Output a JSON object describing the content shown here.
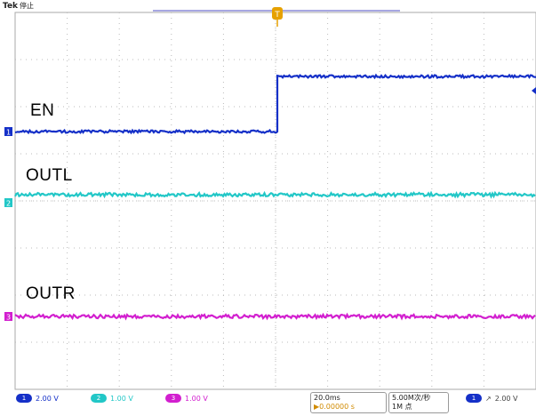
{
  "header": {
    "brand": "Tek",
    "status": "停止"
  },
  "trigger_marker": "T",
  "channels": [
    {
      "id": "1",
      "label": "EN",
      "color": "#1530c8",
      "scale": "2.00 V"
    },
    {
      "id": "2",
      "label": "OUTL",
      "color": "#22c7c7",
      "scale": "1.00 V"
    },
    {
      "id": "3",
      "label": "OUTR",
      "color": "#d21fcf",
      "scale": "1.00 V"
    }
  ],
  "timebase": {
    "scale": "20.0ms",
    "delay": "▶0.00000 s"
  },
  "acquisition": {
    "rate": "5.00M次/秒",
    "points": "1M 点"
  },
  "trigger": {
    "source": "1",
    "slope": "↗",
    "level": "2.00 V"
  }
}
